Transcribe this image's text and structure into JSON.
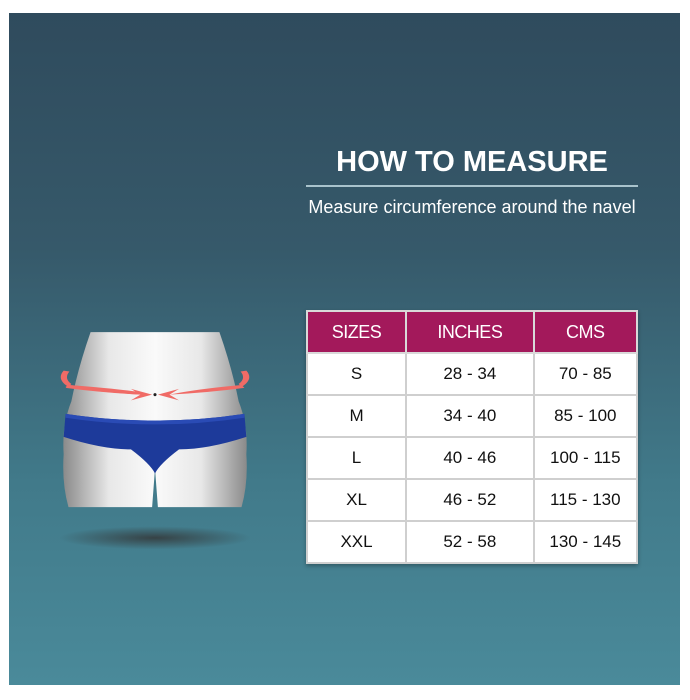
{
  "heading": "HOW TO MEASURE",
  "instruction": "Measure circumference around the navel",
  "colors": {
    "header": "#a3195b",
    "background_top": "#2f4b5d",
    "background_bottom": "#4a8a9a",
    "garment": "#1d3a9a",
    "arrows": "#f06b66"
  },
  "illustration": {
    "icon": "waist-measurement-figure-icon"
  },
  "size_table": {
    "headers": [
      "SIZES",
      "INCHES",
      "CMS"
    ],
    "rows": [
      [
        "S",
        "28 - 34",
        "70 - 85"
      ],
      [
        "M",
        "34 - 40",
        "85 - 100"
      ],
      [
        "L",
        "40 - 46",
        "100 - 115"
      ],
      [
        "XL",
        "46 - 52",
        "115 - 130"
      ],
      [
        "XXL",
        "52 - 58",
        "130 - 145"
      ]
    ]
  }
}
